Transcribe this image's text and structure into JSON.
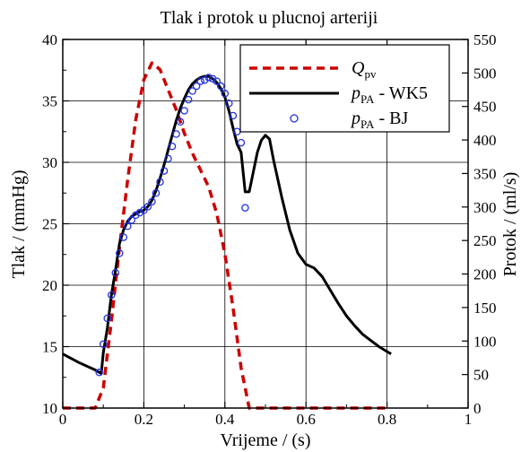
{
  "chart_data": {
    "type": "line",
    "title": "Tlak i protok u plucnoj arteriji",
    "xlabel": "Vrijeme / (s)",
    "ylabel_left": "Tlak / (mmHg)",
    "ylabel_right": "Protok / (ml/s)",
    "xlim": [
      0,
      1
    ],
    "ylim_left": [
      10,
      40
    ],
    "ylim_right": [
      0,
      550
    ],
    "x_ticks": [
      0,
      0.2,
      0.4,
      0.6,
      0.8,
      1
    ],
    "x_tick_labels": [
      "0",
      "0.2",
      "0.4",
      "0.6",
      "0.8",
      "1"
    ],
    "y_ticks_left": [
      10,
      15,
      20,
      25,
      30,
      35,
      40
    ],
    "y_tick_labels_left": [
      "10",
      "15",
      "20",
      "25",
      "30",
      "35",
      "40"
    ],
    "y_ticks_right": [
      0,
      50,
      100,
      150,
      200,
      250,
      300,
      350,
      400,
      450,
      500,
      550
    ],
    "y_tick_labels_right": [
      "0",
      "50",
      "100",
      "150",
      "200",
      "250",
      "300",
      "350",
      "400",
      "450",
      "500",
      "550"
    ],
    "grid": true,
    "legend_position": "top-right",
    "series": [
      {
        "name_main": "Q",
        "name_sub": "pv",
        "suffix": "",
        "style": "dashed",
        "color": "#cc0000",
        "axis": "right",
        "x": [
          0,
          0.08,
          0.1,
          0.12,
          0.14,
          0.16,
          0.18,
          0.2,
          0.22,
          0.24,
          0.26,
          0.28,
          0.3,
          0.32,
          0.34,
          0.36,
          0.38,
          0.4,
          0.42,
          0.44,
          0.46,
          0.48,
          0.5,
          0.6,
          0.7,
          0.8
        ],
        "y": [
          0,
          0,
          30,
          130,
          240,
          340,
          430,
          490,
          515,
          505,
          475,
          445,
          410,
          380,
          355,
          330,
          290,
          230,
          150,
          60,
          0,
          0,
          0,
          0,
          0,
          0
        ]
      },
      {
        "name_main": "p",
        "name_sub": "PA",
        "suffix": " - WK5",
        "style": "solid",
        "color": "#000000",
        "axis": "left",
        "x": [
          0,
          0.04,
          0.08,
          0.095,
          0.1,
          0.11,
          0.12,
          0.13,
          0.14,
          0.15,
          0.16,
          0.17,
          0.18,
          0.19,
          0.2,
          0.21,
          0.22,
          0.23,
          0.24,
          0.25,
          0.26,
          0.27,
          0.28,
          0.29,
          0.3,
          0.31,
          0.32,
          0.33,
          0.34,
          0.35,
          0.36,
          0.37,
          0.38,
          0.39,
          0.4,
          0.41,
          0.42,
          0.43,
          0.44,
          0.45,
          0.46,
          0.47,
          0.48,
          0.49,
          0.5,
          0.51,
          0.52,
          0.54,
          0.56,
          0.58,
          0.6,
          0.62,
          0.64,
          0.66,
          0.68,
          0.7,
          0.72,
          0.74,
          0.76,
          0.78,
          0.8,
          0.81
        ],
        "y": [
          14.4,
          13.7,
          13.1,
          12.8,
          14.5,
          16.5,
          19.2,
          21.2,
          23.4,
          24.5,
          25.2,
          25.6,
          25.8,
          26.0,
          26.1,
          26.4,
          26.9,
          27.7,
          28.7,
          29.8,
          31.0,
          32.2,
          33.4,
          34.4,
          35.2,
          35.9,
          36.4,
          36.7,
          36.9,
          37.0,
          37.0,
          36.8,
          36.5,
          36.0,
          35.3,
          34.2,
          32.8,
          31.5,
          30.8,
          27.6,
          27.6,
          29.2,
          30.8,
          31.8,
          32.2,
          31.9,
          30.2,
          27.2,
          24.5,
          22.6,
          21.7,
          21.4,
          20.7,
          19.6,
          18.5,
          17.5,
          16.7,
          16.0,
          15.5,
          15.0,
          14.6,
          14.4
        ]
      },
      {
        "name_main": "p",
        "name_sub": "PA",
        "suffix": " - BJ",
        "style": "circles",
        "color": "#2233dd",
        "axis": "left",
        "x": [
          0.09,
          0.1,
          0.11,
          0.12,
          0.13,
          0.14,
          0.15,
          0.16,
          0.17,
          0.18,
          0.19,
          0.2,
          0.21,
          0.22,
          0.23,
          0.24,
          0.25,
          0.26,
          0.27,
          0.28,
          0.29,
          0.3,
          0.31,
          0.32,
          0.33,
          0.34,
          0.35,
          0.36,
          0.37,
          0.38,
          0.39,
          0.4,
          0.41,
          0.42,
          0.43,
          0.44,
          0.45
        ],
        "y": [
          12.9,
          15.2,
          17.3,
          19.2,
          21.0,
          22.6,
          23.9,
          24.8,
          25.3,
          25.7,
          25.9,
          26.1,
          26.4,
          26.8,
          27.5,
          28.4,
          29.3,
          30.3,
          31.3,
          32.3,
          33.3,
          34.2,
          35.1,
          35.8,
          36.2,
          36.6,
          36.7,
          36.9,
          36.8,
          36.6,
          36.2,
          35.6,
          34.8,
          33.8,
          32.5,
          31.6,
          26.3
        ]
      }
    ]
  }
}
